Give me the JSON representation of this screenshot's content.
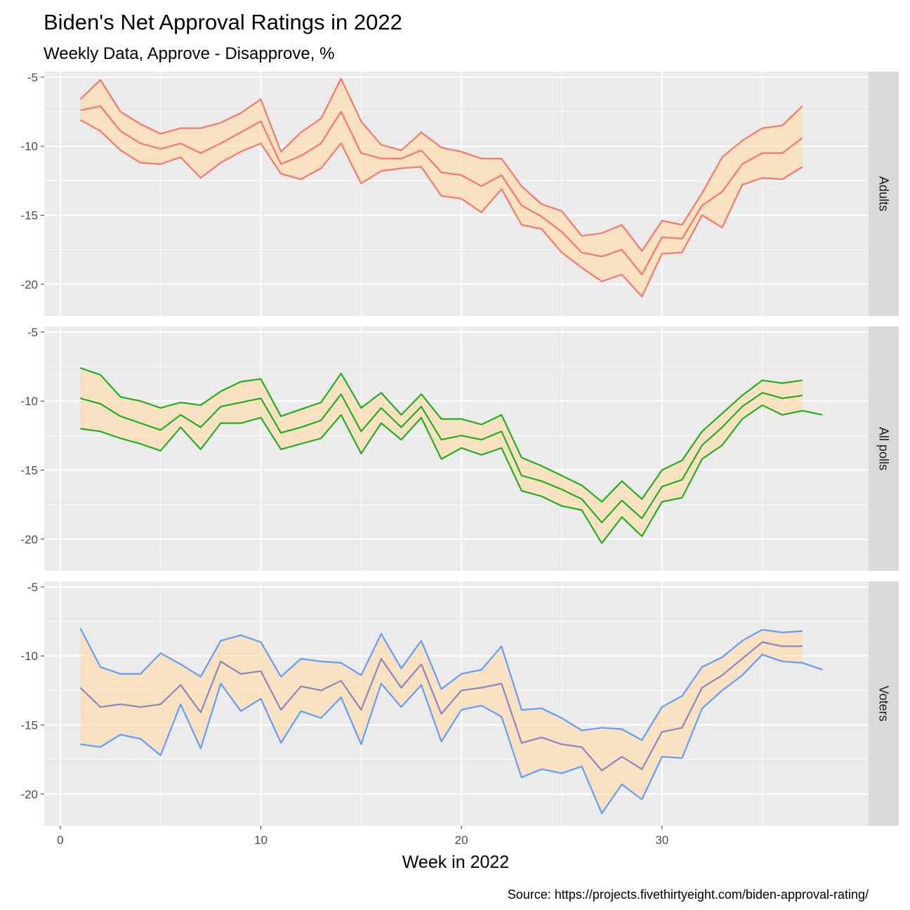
{
  "chart_data": {
    "type": "line",
    "title": "Biden's Net Approval Ratings in 2022",
    "subtitle": "Weekly Data, Approve - Disapprove, %",
    "xlabel": "Week in 2022",
    "ylabel": "",
    "caption": "Source: https://projects.fivethirtyeight.com/biden-approval-rating/",
    "xlim": [
      -0.8,
      40.3
    ],
    "ylim": [
      -22.3,
      -4.6
    ],
    "x_ticks": [
      0,
      10,
      20,
      30
    ],
    "y_ticks": [
      -5,
      -10,
      -15,
      -20
    ],
    "grid": true,
    "ribbon_color": "#FFDAA5",
    "facets": [
      {
        "label": "Adults",
        "color": "#F8766D",
        "weeks_band": [
          1,
          2,
          3,
          4,
          5,
          6,
          7,
          8,
          9,
          10,
          11,
          12,
          13,
          14,
          15,
          16,
          17,
          18,
          19,
          20,
          21,
          22,
          23,
          24,
          25,
          26,
          27,
          28,
          29,
          30,
          31,
          32,
          33,
          34,
          35,
          36,
          37
        ],
        "upper": [
          -6.6,
          -5.2,
          -7.5,
          -8.4,
          -9.1,
          -8.7,
          -8.7,
          -8.3,
          -7.6,
          -6.6,
          -10.4,
          -9.0,
          -8.0,
          -5.1,
          -8.2,
          -9.9,
          -10.3,
          -9.0,
          -10.1,
          -10.4,
          -10.9,
          -10.9,
          -12.9,
          -14.2,
          -14.7,
          -16.5,
          -16.3,
          -15.7,
          -17.6,
          -15.4,
          -15.7,
          -13.4,
          -10.8,
          -9.6,
          -8.7,
          -8.5,
          -7.1
        ],
        "mid": [
          -7.4,
          -7.1,
          -8.9,
          -9.8,
          -10.2,
          -9.8,
          -10.5,
          -9.8,
          -9.0,
          -8.2,
          -11.3,
          -10.7,
          -9.8,
          -7.5,
          -10.5,
          -10.9,
          -10.9,
          -10.3,
          -11.9,
          -12.1,
          -12.9,
          -12.1,
          -14.3,
          -15.1,
          -16.2,
          -17.7,
          -18.0,
          -17.5,
          -19.3,
          -16.6,
          -16.7,
          -14.3,
          -13.3,
          -11.3,
          -10.5,
          -10.5,
          -9.4
        ],
        "lower": [
          -8.1,
          -8.9,
          -10.3,
          -11.2,
          -11.3,
          -10.8,
          -12.3,
          -11.2,
          -10.4,
          -9.8,
          -12.0,
          -12.4,
          -11.6,
          -9.8,
          -12.7,
          -11.8,
          -11.6,
          -11.5,
          -13.6,
          -13.8,
          -14.8,
          -13.1,
          -15.7,
          -16.0,
          -17.7,
          -18.8,
          -19.8,
          -19.3,
          -20.9,
          -17.8,
          -17.7,
          -15.0,
          -15.9,
          -12.8,
          -12.3,
          -12.4,
          -11.5
        ],
        "extra_weeks": [],
        "extra_values": []
      },
      {
        "label": "All polls",
        "color": "#1FAF1F",
        "weeks_band": [
          1,
          2,
          3,
          4,
          5,
          6,
          7,
          8,
          9,
          10,
          11,
          12,
          13,
          14,
          15,
          16,
          17,
          18,
          19,
          20,
          21,
          22,
          23,
          24,
          25,
          26,
          27,
          28,
          29,
          30,
          31,
          32,
          33,
          34,
          35,
          36,
          37
        ],
        "upper": [
          -7.6,
          -8.1,
          -9.7,
          -10.0,
          -10.5,
          -10.1,
          -10.3,
          -9.3,
          -8.6,
          -8.4,
          -11.1,
          -10.6,
          -10.1,
          -8.0,
          -10.5,
          -9.4,
          -11.0,
          -9.5,
          -11.3,
          -11.3,
          -11.7,
          -11.0,
          -14.1,
          -14.7,
          -15.4,
          -16.1,
          -17.3,
          -15.8,
          -17.1,
          -15.0,
          -14.3,
          -12.2,
          -10.9,
          -9.6,
          -8.5,
          -8.7,
          -8.5
        ],
        "mid": [
          -9.8,
          -10.2,
          -11.1,
          -11.6,
          -12.1,
          -11.0,
          -11.9,
          -10.4,
          -10.1,
          -9.8,
          -12.3,
          -11.9,
          -11.4,
          -9.5,
          -12.2,
          -10.5,
          -11.9,
          -10.4,
          -12.8,
          -12.5,
          -12.8,
          -12.2,
          -15.4,
          -15.8,
          -16.4,
          -17.1,
          -18.8,
          -17.2,
          -18.5,
          -16.2,
          -15.7,
          -13.2,
          -11.9,
          -10.4,
          -9.4,
          -9.8,
          -9.6
        ],
        "lower": [
          -12.0,
          -12.2,
          -12.7,
          -13.1,
          -13.6,
          -11.9,
          -13.5,
          -11.6,
          -11.6,
          -11.2,
          -13.5,
          -13.1,
          -12.7,
          -11.0,
          -13.8,
          -11.6,
          -12.8,
          -11.2,
          -14.2,
          -13.4,
          -13.9,
          -13.4,
          -16.5,
          -16.9,
          -17.6,
          -17.9,
          -20.3,
          -18.4,
          -19.8,
          -17.3,
          -17.0,
          -14.2,
          -13.2,
          -11.3,
          -10.3,
          -11.0,
          -10.7
        ],
        "extra_weeks": [
          37,
          38
        ],
        "extra_values": [
          -10.7,
          -11.0
        ]
      },
      {
        "label": "Voters",
        "color": "#619CFF",
        "mid_color": "#8C85C2",
        "weeks_band": [
          1,
          2,
          3,
          4,
          5,
          6,
          7,
          8,
          9,
          10,
          11,
          12,
          13,
          14,
          15,
          16,
          17,
          18,
          19,
          20,
          21,
          22,
          23,
          24,
          25,
          26,
          27,
          28,
          29,
          30,
          31,
          32,
          33,
          34,
          35,
          36,
          37
        ],
        "upper": [
          -8.0,
          -10.8,
          -11.3,
          -11.3,
          -9.8,
          -10.6,
          -11.5,
          -8.9,
          -8.5,
          -9.0,
          -11.5,
          -10.2,
          -10.4,
          -10.5,
          -11.4,
          -8.4,
          -10.9,
          -8.9,
          -12.4,
          -11.3,
          -11.0,
          -9.3,
          -13.9,
          -13.8,
          -14.5,
          -15.4,
          -15.2,
          -15.3,
          -16.1,
          -13.7,
          -12.9,
          -10.8,
          -10.1,
          -8.9,
          -8.1,
          -8.3,
          -8.2
        ],
        "mid": [
          -12.3,
          -13.7,
          -13.5,
          -13.7,
          -13.5,
          -12.1,
          -14.1,
          -10.4,
          -11.3,
          -11.1,
          -13.9,
          -12.2,
          -12.5,
          -11.8,
          -13.9,
          -10.2,
          -12.3,
          -10.6,
          -14.2,
          -12.5,
          -12.3,
          -12.0,
          -16.3,
          -15.9,
          -16.4,
          -16.6,
          -18.3,
          -17.3,
          -18.2,
          -15.5,
          -15.2,
          -12.3,
          -11.4,
          -10.2,
          -9.0,
          -9.3,
          -9.3
        ],
        "lower": [
          -16.4,
          -16.6,
          -15.7,
          -16.0,
          -17.2,
          -13.5,
          -16.7,
          -12.0,
          -14.0,
          -13.1,
          -16.3,
          -14.0,
          -14.5,
          -13.0,
          -16.4,
          -12.0,
          -13.7,
          -12.1,
          -16.2,
          -13.9,
          -13.6,
          -14.4,
          -18.8,
          -18.2,
          -18.5,
          -18.0,
          -21.4,
          -19.3,
          -20.4,
          -17.3,
          -17.4,
          -13.8,
          -12.5,
          -11.4,
          -9.9,
          -10.4,
          -10.5
        ],
        "extra_weeks": [
          37,
          38
        ],
        "extra_values": [
          -10.5,
          -11.0
        ]
      }
    ]
  }
}
